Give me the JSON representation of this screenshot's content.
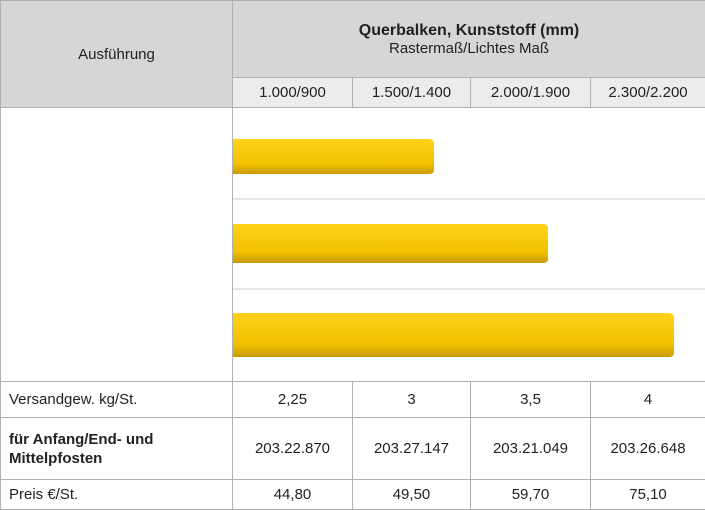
{
  "table": {
    "header": {
      "row_label": "Ausführung",
      "title": "Querbalken, Kunststoff (mm)",
      "subtitle": "Rastermaß/Lichtes Maß"
    },
    "columns": [
      "1.000/900",
      "1.500/1.400",
      "2.000/1.900",
      "2.300/2.200"
    ],
    "rows": [
      {
        "label": "Versandgew. kg/St.",
        "values": [
          "2,25",
          "3",
          "3,5",
          "4"
        ]
      },
      {
        "label": "für Anfang/End- und Mittelpfosten",
        "values": [
          "203.22.870",
          "203.27.147",
          "203.21.049",
          "203.26.648"
        ]
      },
      {
        "label": "Preis €/St.",
        "values": [
          "44,80",
          "49,50",
          "59,70",
          "75,10"
        ]
      }
    ]
  }
}
